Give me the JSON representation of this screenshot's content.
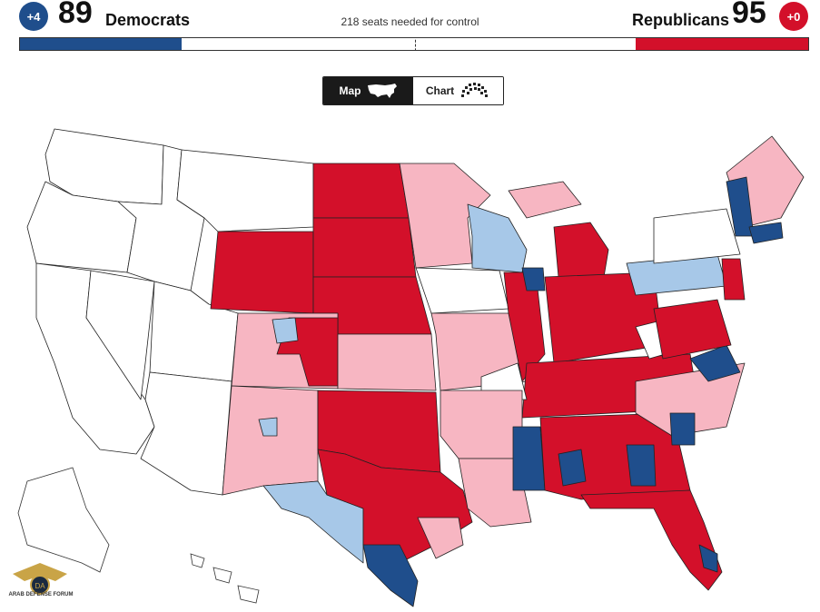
{
  "header": {
    "dem_change": "+4",
    "dem_count": "89",
    "dem_label": "Democrats",
    "needed_text": "218 seats needed for control",
    "rep_label": "Republicans",
    "rep_count": "95",
    "rep_change": "+0"
  },
  "seat_bar": {
    "dem_seats": 89,
    "rep_seats": 95,
    "total_seats": 435,
    "control_threshold": 218
  },
  "view_toggle": {
    "map_label": "Map",
    "chart_label": "Chart",
    "selected": "Map"
  },
  "map_colors": {
    "dem_solid": "#1f4e8c",
    "dem_lean": "#a7c8e8",
    "rep_solid": "#d3102a",
    "rep_lean": "#f7b6c2",
    "undecided": "#ffffff",
    "border": "#222222"
  },
  "watermark": {
    "initials": "DA",
    "name": "ARAB DEFENSE FORUM"
  }
}
